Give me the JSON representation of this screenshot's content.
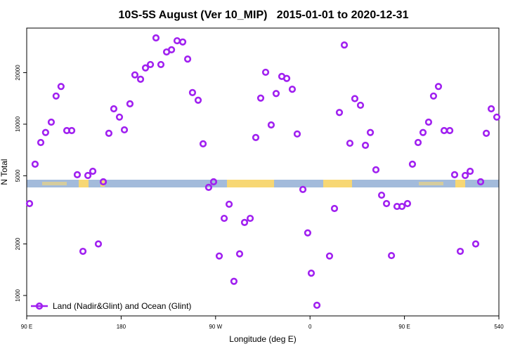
{
  "chart_data": {
    "type": "scatter",
    "title": "10S-5S August (Ver 10_MIP)   2015-01-01 to 2020-12-31",
    "x_label": "Longitude (deg E)",
    "y_label": "N Total",
    "log_y": true,
    "xlim": [
      90,
      540
    ],
    "ylim": [
      760,
      36400
    ],
    "xticks": [
      {
        "value": 90,
        "label": "90 E"
      },
      180,
      {
        "value": 270,
        "label": "90 W"
      },
      {
        "value": 360,
        "label": "0"
      },
      {
        "value": 450,
        "label": "90 E"
      },
      540
    ],
    "yticks": [
      1000,
      2000,
      5000,
      10000,
      20000
    ],
    "legend": "bottom-left",
    "x": [
      92.7,
      98,
      103.4,
      108,
      113.4,
      118,
      122.7,
      128.2,
      132.9,
      138.2,
      143.6,
      148.3,
      153,
      158.3,
      163,
      168.3,
      173,
      178.4,
      183.1,
      188.4,
      193.1,
      198.5,
      203.2,
      207.9,
      213.2,
      217.9,
      223.3,
      228,
      233.3,
      238.7,
      243.4,
      248,
      253.4,
      258.1,
      263.4,
      268.1,
      273.5,
      278.2,
      282.9,
      287.5,
      292.9,
      297.6,
      303,
      308.3,
      313,
      317.7,
      323,
      327.7,
      333.1,
      337.8,
      343.1,
      347.8,
      353.2,
      357.8,
      361.2,
      366.6,
      378.6,
      383.3,
      388,
      392.7,
      398,
      402.7,
      408.1,
      412.8,
      417.5,
      422.8,
      428.2,
      432.9,
      437.6,
      442.9,
      447.6,
      452.9,
      457.6,
      463,
      467.7,
      473,
      477.7,
      482.4,
      487.8,
      493.2,
      497.8,
      503.2,
      507.9,
      512.6,
      517.9,
      522.6,
      528,
      532.7,
      538
    ],
    "series": [
      {
        "name": "Land (Nadir&Glint) and Ocean (Glint)",
        "color": "#a020f0",
        "values": [
          3440,
          5840,
          7820,
          8940,
          10280,
          14600,
          16600,
          9180,
          9180,
          5070,
          1810,
          5020,
          5310,
          2000,
          4610,
          8850,
          12300,
          11000,
          9270,
          13150,
          19400,
          18300,
          21300,
          22300,
          31900,
          22300,
          26400,
          27200,
          30700,
          30200,
          24000,
          15300,
          13800,
          7680,
          4280,
          4610,
          1700,
          2820,
          3410,
          1210,
          1750,
          2670,
          2820,
          8360,
          14200,
          20100,
          9900,
          15100,
          19000,
          18500,
          16000,
          8770,
          4160,
          2320,
          1350,
          877,
          1700,
          3220,
          11700,
          29000,
          7740,
          14100,
          12900,
          7530,
          8940,
          5420,
          3850,
          3440,
          1710,
          3310,
          3310,
          3440,
          5840,
          7820,
          8940,
          10280,
          14600,
          16600,
          9180,
          9180,
          5070,
          1810,
          5020,
          5310,
          2000,
          4610,
          8850,
          12300,
          11000
        ]
      }
    ]
  }
}
